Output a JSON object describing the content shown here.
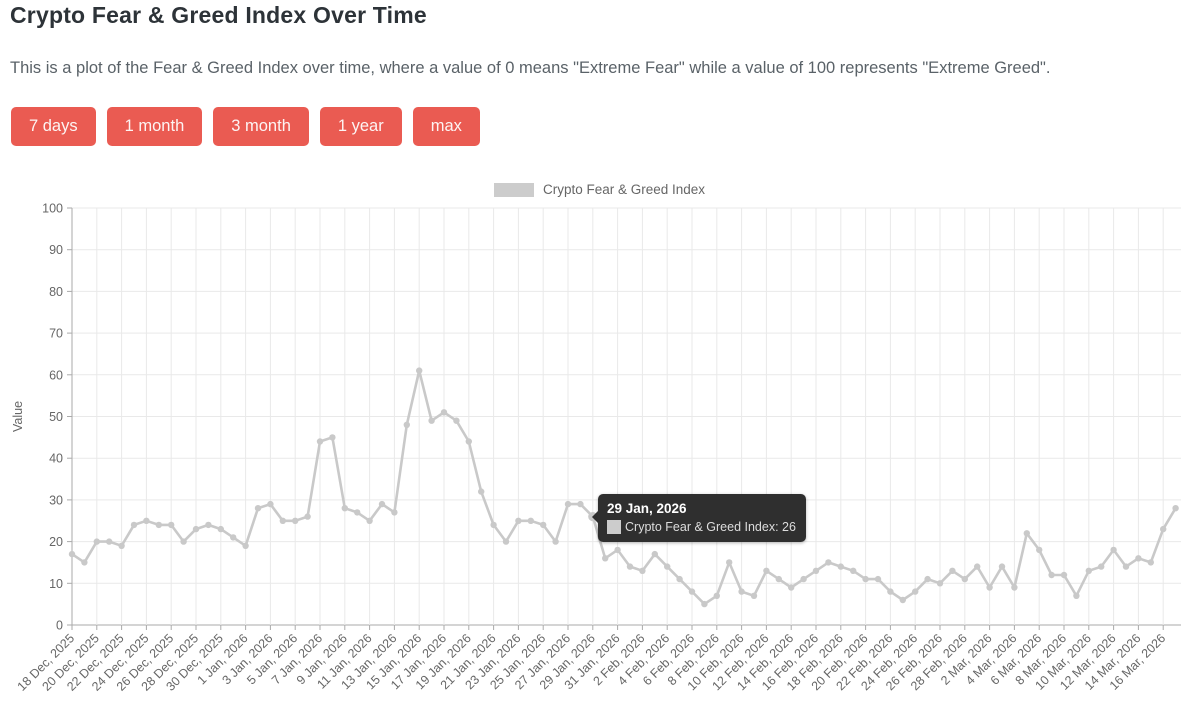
{
  "page": {
    "title": "Crypto Fear & Greed Index Over Time",
    "subtitle": "This is a plot of the Fear & Greed Index over time, where a value of 0 means \"Extreme Fear\" while a value of 100 represents \"Extreme Greed\".",
    "accent_color": "#ea5b52",
    "range_buttons": [
      {
        "label": "7 days"
      },
      {
        "label": "1 month"
      },
      {
        "label": "3 month"
      },
      {
        "label": "1 year"
      },
      {
        "label": "max"
      }
    ]
  },
  "legend": {
    "label": "Crypto Fear & Greed Index",
    "swatch_color": "#cccccc"
  },
  "tooltip": {
    "date": "29 Jan, 2026",
    "label": "Crypto Fear & Greed Index: 26",
    "bg_color": "#262626"
  },
  "chart_data": {
    "type": "line",
    "title": "",
    "xlabel": "",
    "ylabel": "Value",
    "ylim": [
      0,
      100
    ],
    "grid": true,
    "legend_position": "top-center",
    "line_color": "#c9c9c9",
    "grid_color": "#e9e9e9",
    "y_ticks": [
      0,
      10,
      20,
      30,
      40,
      50,
      60,
      70,
      80,
      90,
      100
    ],
    "x_tick_labels": [
      "18 Dec, 2025",
      "20 Dec, 2025",
      "22 Dec, 2025",
      "24 Dec, 2025",
      "26 Dec, 2025",
      "28 Dec, 2025",
      "30 Dec, 2025",
      "1 Jan, 2026",
      "3 Jan, 2026",
      "5 Jan, 2026",
      "7 Jan, 2026",
      "9 Jan, 2026",
      "11 Jan, 2026",
      "13 Jan, 2026",
      "15 Jan, 2026",
      "17 Jan, 2026",
      "19 Jan, 2026",
      "21 Jan, 2026",
      "23 Jan, 2026",
      "25 Jan, 2026",
      "27 Jan, 2026",
      "29 Jan, 2026",
      "31 Jan, 2026",
      "2 Feb, 2026",
      "4 Feb, 2026",
      "6 Feb, 2026",
      "8 Feb, 2026",
      "10 Feb, 2026",
      "12 Feb, 2026",
      "14 Feb, 2026",
      "16 Feb, 2026",
      "18 Feb, 2026",
      "20 Feb, 2026",
      "22 Feb, 2026",
      "24 Feb, 2026",
      "26 Feb, 2026",
      "28 Feb, 2026",
      "2 Mar, 2026",
      "4 Mar, 2026",
      "6 Mar, 2026",
      "8 Mar, 2026",
      "10 Mar, 2026",
      "12 Mar, 2026",
      "14 Mar, 2026",
      "16 Mar, 2026"
    ],
    "x_tick_every_n_points": 2,
    "x_start": "18 Dec, 2025",
    "x_end": "17 Mar, 2026",
    "cadence": "daily",
    "series": [
      {
        "name": "Crypto Fear & Greed Index",
        "color": "#c9c9c9",
        "values": [
          17,
          15,
          20,
          20,
          19,
          24,
          25,
          24,
          24,
          20,
          23,
          24,
          23,
          21,
          19,
          28,
          29,
          25,
          25,
          26,
          44,
          45,
          28,
          27,
          25,
          29,
          27,
          48,
          61,
          49,
          51,
          49,
          44,
          32,
          24,
          20,
          25,
          25,
          24,
          20,
          29,
          29,
          26,
          16,
          18,
          14,
          13,
          17,
          14,
          11,
          8,
          5,
          7,
          15,
          8,
          7,
          13,
          11,
          9,
          11,
          13,
          15,
          14,
          13,
          11,
          11,
          8,
          6,
          8,
          11,
          10,
          13,
          11,
          14,
          9,
          14,
          9,
          22,
          18,
          12,
          12,
          7,
          13,
          14,
          18,
          14,
          16,
          15,
          23,
          28
        ]
      }
    ],
    "hover": {
      "index": 42,
      "date": "29 Jan, 2026",
      "value": 26
    }
  }
}
